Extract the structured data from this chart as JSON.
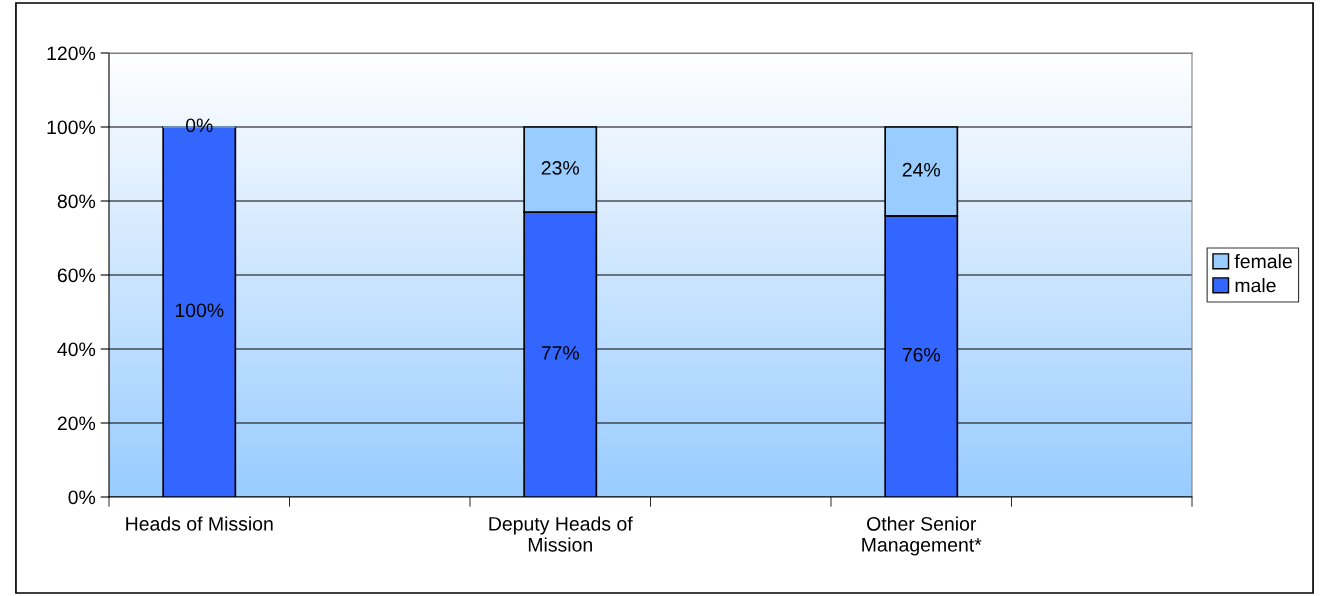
{
  "chart_data": {
    "type": "bar",
    "stacked": true,
    "categories": [
      "Heads of Mission",
      null,
      "Deputy Heads of\nMission",
      null,
      "Other Senior\nManagement*",
      null
    ],
    "series": [
      {
        "name": "male",
        "color": "#3366ff",
        "values": [
          100,
          null,
          77,
          null,
          76,
          null
        ],
        "value_labels": [
          "100%",
          null,
          "77%",
          null,
          "76%",
          null
        ]
      },
      {
        "name": "female",
        "color": "#99ccff",
        "values": [
          0,
          null,
          23,
          null,
          24,
          null
        ],
        "value_labels": [
          "0%",
          null,
          "23%",
          null,
          "24%",
          null
        ]
      }
    ],
    "ylim": [
      0,
      120
    ],
    "yticks": [
      {
        "value": 0,
        "label": "0%"
      },
      {
        "value": 20,
        "label": "20%"
      },
      {
        "value": 40,
        "label": "40%"
      },
      {
        "value": 60,
        "label": "60%"
      },
      {
        "value": 80,
        "label": "80%"
      },
      {
        "value": 100,
        "label": "100%"
      },
      {
        "value": 120,
        "label": "120%"
      }
    ],
    "grid": "y",
    "legend": "right"
  }
}
